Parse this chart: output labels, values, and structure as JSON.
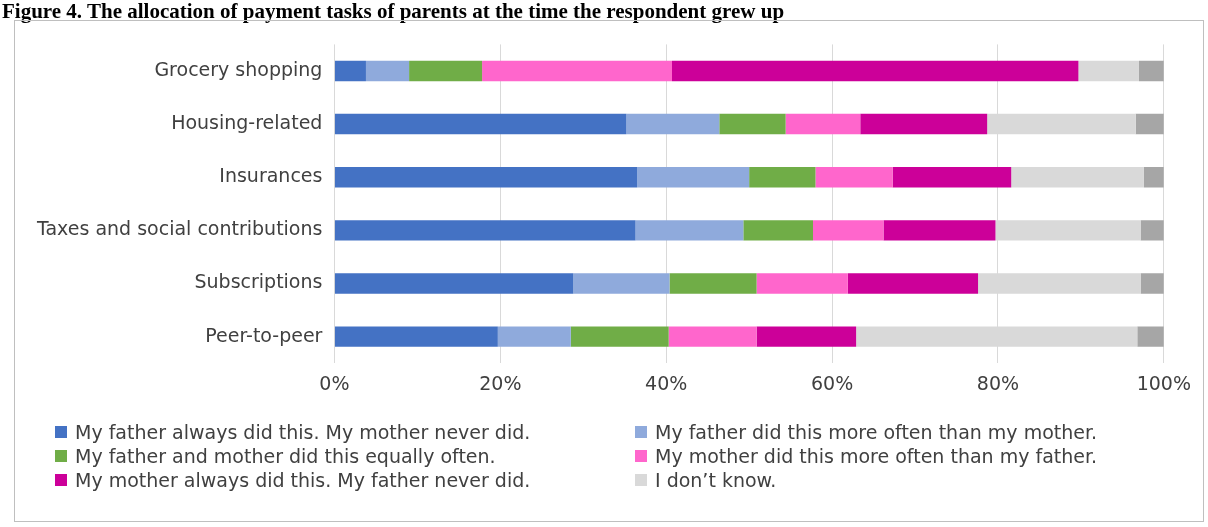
{
  "chart_data": {
    "type": "bar",
    "orientation": "horizontal",
    "stacked": true,
    "title": "Figure 4. The allocation of payment tasks of parents at the time the respondent grew up",
    "categories": [
      "Grocery shopping",
      "Housing-related",
      "Insurances",
      "Taxes and social contributions",
      "Subscriptions",
      "Peer-to-peer"
    ],
    "series": [
      {
        "name": "My father always did this. My mother never did.",
        "color": "#4472c4",
        "values": [
          3.8,
          35.2,
          36.5,
          36.3,
          28.8,
          19.7
        ]
      },
      {
        "name": "My father did this more often than my mother.",
        "color": "#8faadc",
        "values": [
          5.2,
          11.2,
          13.5,
          13.0,
          11.6,
          8.8
        ]
      },
      {
        "name": "My father and mother did this equally often.",
        "color": "#70ad47",
        "values": [
          8.8,
          8.0,
          8.0,
          8.4,
          10.5,
          11.8
        ]
      },
      {
        "name": "My mother did this more often than my father.",
        "color": "#ff66cc",
        "values": [
          22.9,
          9.0,
          9.3,
          8.5,
          11.0,
          10.6
        ]
      },
      {
        "name": "My mother always did this. My father never did.",
        "color": "#cc0099",
        "values": [
          49.0,
          15.3,
          14.3,
          13.5,
          15.7,
          12.0
        ]
      },
      {
        "name": "I don’t know.",
        "color": "#d9d9d9",
        "values": [
          7.3,
          17.9,
          16.0,
          17.5,
          19.6,
          33.9
        ]
      },
      {
        "color": "#a6a6a6",
        "values": [
          3.0,
          3.4,
          2.4,
          2.8,
          2.8,
          3.2
        ]
      }
    ],
    "xlim": [
      0,
      100
    ],
    "xticks": [
      {
        "value": 0,
        "label": "0%"
      },
      {
        "value": 20,
        "label": "20%"
      },
      {
        "value": 40,
        "label": "40%"
      },
      {
        "value": 60,
        "label": "60%"
      },
      {
        "value": 80,
        "label": "80%"
      },
      {
        "value": 100,
        "label": "100%"
      }
    ],
    "grid": "x",
    "legend": "bottom"
  }
}
